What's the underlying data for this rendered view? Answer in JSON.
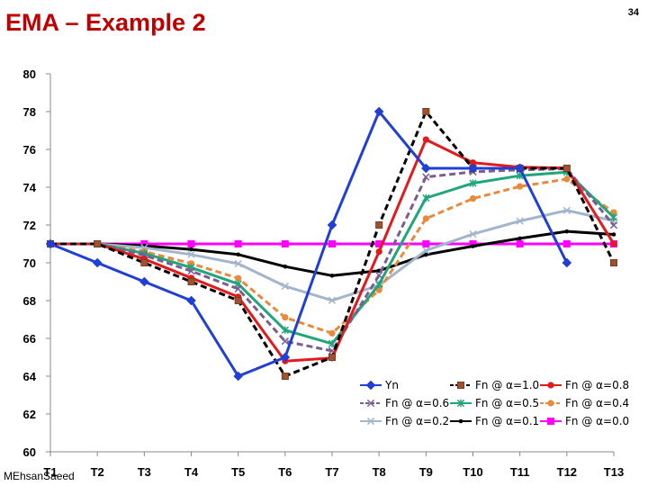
{
  "slide": {
    "title": "EMA – Example 2",
    "page_number": "34",
    "author": "MEhsanSaeed"
  },
  "chart_data": {
    "type": "line",
    "title": "",
    "xlabel": "",
    "ylabel": "",
    "categories": [
      "T1",
      "T2",
      "T3",
      "T4",
      "T5",
      "T6",
      "T7",
      "T8",
      "T9",
      "T10",
      "T11",
      "T12",
      "T13"
    ],
    "ylim": [
      60,
      80
    ],
    "yticks": [
      60,
      62,
      64,
      66,
      68,
      70,
      72,
      74,
      76,
      78,
      80
    ],
    "grid": false,
    "legend": "bottom-right, inside plot, 3 columns",
    "series": [
      {
        "name": "Yn",
        "color": "#1f3fd6",
        "dash": "solid",
        "marker": "diamond",
        "values": [
          71,
          70,
          69,
          68,
          64,
          65,
          72,
          78,
          75,
          75,
          75,
          70,
          null
        ]
      },
      {
        "name": "Fn @ α=1.0",
        "color": "#000000",
        "dash": "dashed",
        "marker": "square",
        "markerColor": "#a0522d",
        "values": [
          71,
          71,
          70,
          69,
          68,
          64,
          65,
          72,
          78,
          75,
          75,
          75,
          70
        ]
      },
      {
        "name": "Fn @ α=0.8",
        "color": "#e31a1c",
        "dash": "solid",
        "marker": "circle",
        "values": [
          71,
          71,
          70.2,
          69.2,
          68.2,
          64.8,
          64.96,
          70.59,
          76.52,
          75.3,
          75.06,
          75.01,
          71.0
        ]
      },
      {
        "name": "Fn @ α=0.6",
        "color": "#7b5c95",
        "dash": "dashed",
        "marker": "x",
        "values": [
          71,
          71,
          70.4,
          69.56,
          68.62,
          65.85,
          65.34,
          69.34,
          74.54,
          74.81,
          74.92,
          74.97,
          71.99
        ]
      },
      {
        "name": "Fn @ α=0.5",
        "color": "#1fa67a",
        "dash": "solid",
        "marker": "star",
        "values": [
          71,
          71,
          70.5,
          69.75,
          68.88,
          66.44,
          65.72,
          68.86,
          73.43,
          74.21,
          74.61,
          74.8,
          72.4
        ]
      },
      {
        "name": "Fn @ α=0.4",
        "color": "#e88a3c",
        "dash": "dashed",
        "marker": "circle",
        "values": [
          71,
          71,
          70.6,
          69.96,
          69.18,
          67.11,
          66.27,
          68.56,
          72.34,
          73.4,
          74.04,
          74.43,
          72.66
        ]
      },
      {
        "name": "Fn @ α=0.2",
        "color": "#a3b5cc",
        "dash": "solid",
        "marker": "x",
        "values": [
          71,
          71,
          70.8,
          70.44,
          69.95,
          68.76,
          68.01,
          68.81,
          70.65,
          71.52,
          72.21,
          72.77,
          72.22
        ]
      },
      {
        "name": "Fn @ α=0.1",
        "color": "#000000",
        "dash": "solid",
        "marker": "dot",
        "values": [
          71,
          71,
          70.9,
          70.71,
          70.44,
          69.8,
          69.32,
          69.58,
          70.43,
          70.88,
          71.29,
          71.66,
          71.5
        ]
      },
      {
        "name": "Fn @ α=0.0",
        "color": "#ff00ff",
        "dash": "solid",
        "marker": "square",
        "values": [
          71,
          71,
          71,
          71,
          71,
          71,
          71,
          71,
          71,
          71,
          71,
          71,
          71
        ]
      }
    ]
  }
}
